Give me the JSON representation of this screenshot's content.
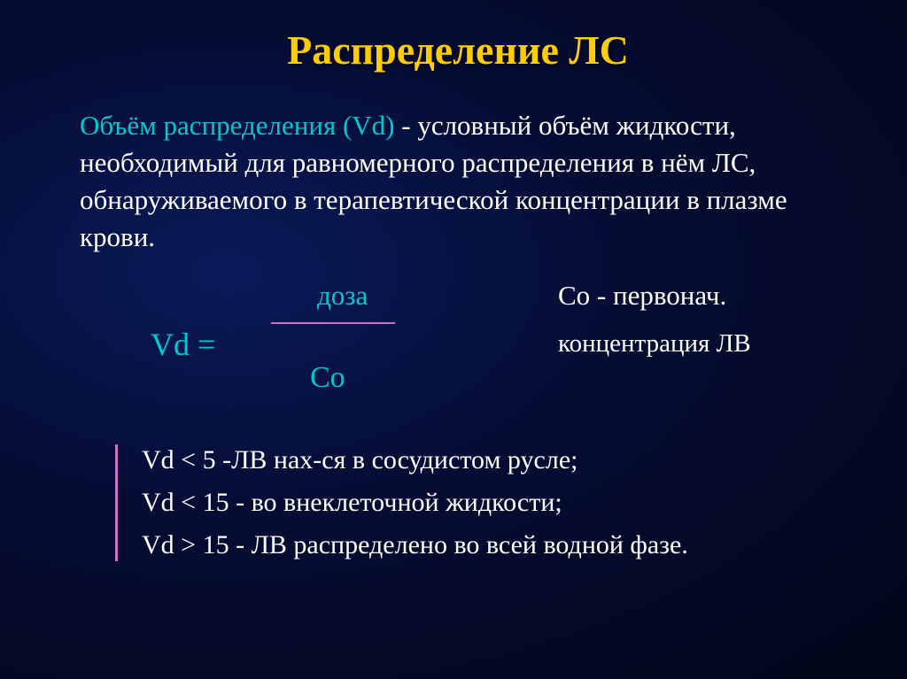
{
  "title": "Распределение ЛС",
  "para_prefix": "Объём распределения (Vd)",
  "para_rest": " - условный объём жидкости, необходимый для равномерного распределения в нём ЛС, обнаруживаемого в терапевтической концентрации в плазме крови.",
  "formula": {
    "numerator_label": "доза",
    "co_desc": "Со - первонач.",
    "vd_eq": "Vd =",
    "conc_label": "концентрация ЛВ",
    "denominator": "Со"
  },
  "list": [
    "Vd < 5 -ЛВ нах-ся в сосудистом русле;",
    "Vd < 15 - во внеклеточной жидкости;",
    "Vd > 15 - ЛВ распределено во всей водной фазе."
  ],
  "colors": {
    "title": "#ffcc00",
    "accent": "#00c8d0",
    "body": "#ffffff",
    "line": "#d070c8",
    "bg_inner": "#0a1a5a",
    "bg_outer": "#020618"
  }
}
